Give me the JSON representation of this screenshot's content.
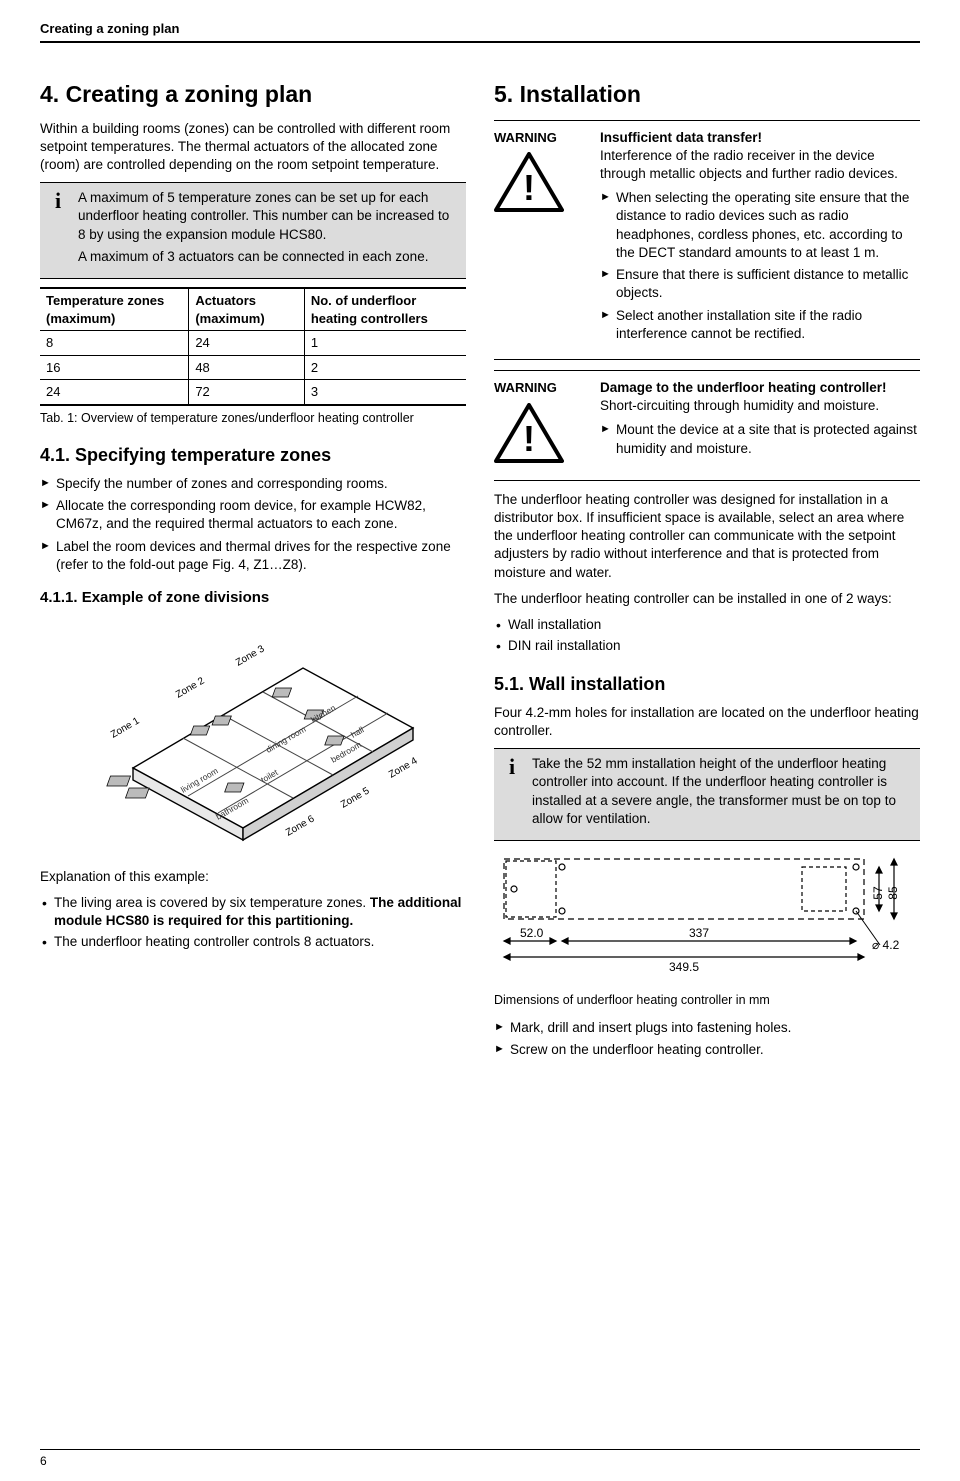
{
  "page": {
    "header": "Creating a zoning plan",
    "number": "6"
  },
  "left": {
    "h4": "4. Creating a zoning plan",
    "intro": "Within a building rooms (zones) can be controlled with different room setpoint temperatures. The thermal actuators of the allocated zone (room) are controlled depending on the room setpoint temperature.",
    "info1_p1": "A maximum of 5 temperature zones can be set up for each underfloor heating controller. This number can be increased to 8 by using the expansion module HCS80.",
    "info1_p2": "A maximum of 3 actuators can be connected in each zone.",
    "table": {
      "headers": [
        "Temperature zones (maximum)",
        "Actuators (maximum)",
        "No. of underfloor heating controllers"
      ],
      "rows": [
        [
          "8",
          "24",
          "1"
        ],
        [
          "16",
          "48",
          "2"
        ],
        [
          "24",
          "72",
          "3"
        ]
      ]
    },
    "table_caption": "Tab. 1: Overview of temperature zones/underfloor heating controller",
    "h41": "4.1.    Specifying temperature zones",
    "bullets_41": [
      "Specify the number of zones and corresponding rooms.",
      "Allocate the corresponding room device, for example HCW82, CM67z, and the required thermal actuators to each zone.",
      "Label the room devices and thermal drives for the respective zone (refer to the fold-out page Fig. 4, Z1…Z8)."
    ],
    "h411": "4.1.1.      Example of zone divisions",
    "zone_labels": [
      "Zone 1",
      "Zone 2",
      "Zone 3",
      "Zone 4",
      "Zone 5",
      "Zone 6"
    ],
    "room_labels": [
      "living room",
      "bathroom",
      "toilet",
      "dining room",
      "kitchen",
      "hall",
      "bedroom"
    ],
    "explanation_title": "Explanation of this example:",
    "explanation_items": [
      "The living area is covered by six temperature zones. The additional module HCS80 is required for this partitioning.",
      "The underfloor heating controller controls 8 actuators."
    ]
  },
  "right": {
    "h5": "5. Installation",
    "warn1": {
      "label": "WARNING",
      "title": "Insufficient data transfer!",
      "para": "Interference of the radio receiver in the device through metallic objects and further radio devices.",
      "items": [
        "When selecting the operating site ensure that the distance to radio devices such as radio headphones, cordless phones, etc. according to the DECT standard amounts to at least 1 m.",
        "Ensure that there is sufficient distance to metallic objects.",
        "Select another installation site if the radio interference cannot be rectified."
      ]
    },
    "warn2": {
      "label": "WARNING",
      "title": "Damage to the underfloor heating controller!",
      "para": "Short-circuiting through humidity and moisture.",
      "items": [
        "Mount the device at a site that is protected against humidity and moisture."
      ]
    },
    "install_p1": "The underfloor heating controller was designed for installation in a distributor box. If insufficient space is available, select an area where the underfloor heating controller can communicate with the setpoint adjusters by radio without interference and that is protected from moisture and water.",
    "install_p2": "The underfloor heating controller can be installed in one of 2 ways:",
    "install_ways": [
      "Wall installation",
      "DIN rail installation"
    ],
    "h51": "5.1.    Wall installation",
    "h51_p": "Four 4.2-mm holes for installation are located on the underfloor heating controller.",
    "info2": "Take the 52 mm installation height of the underfloor heating controller into account. If the underfloor heating controller is installed at a severe angle, the transformer must be on top to allow for ventilation.",
    "dims": {
      "left_w": "52.0",
      "total_w_inner": "337",
      "total_w_outer": "349.5",
      "h_inner": "57",
      "h_outer": "85",
      "hole_d": "⌀ 4.2"
    },
    "dims_caption": "Dimensions of underfloor heating controller in mm",
    "final_items": [
      "Mark, drill and insert plugs into fastening holes.",
      "Screw on the underfloor heating controller."
    ]
  }
}
